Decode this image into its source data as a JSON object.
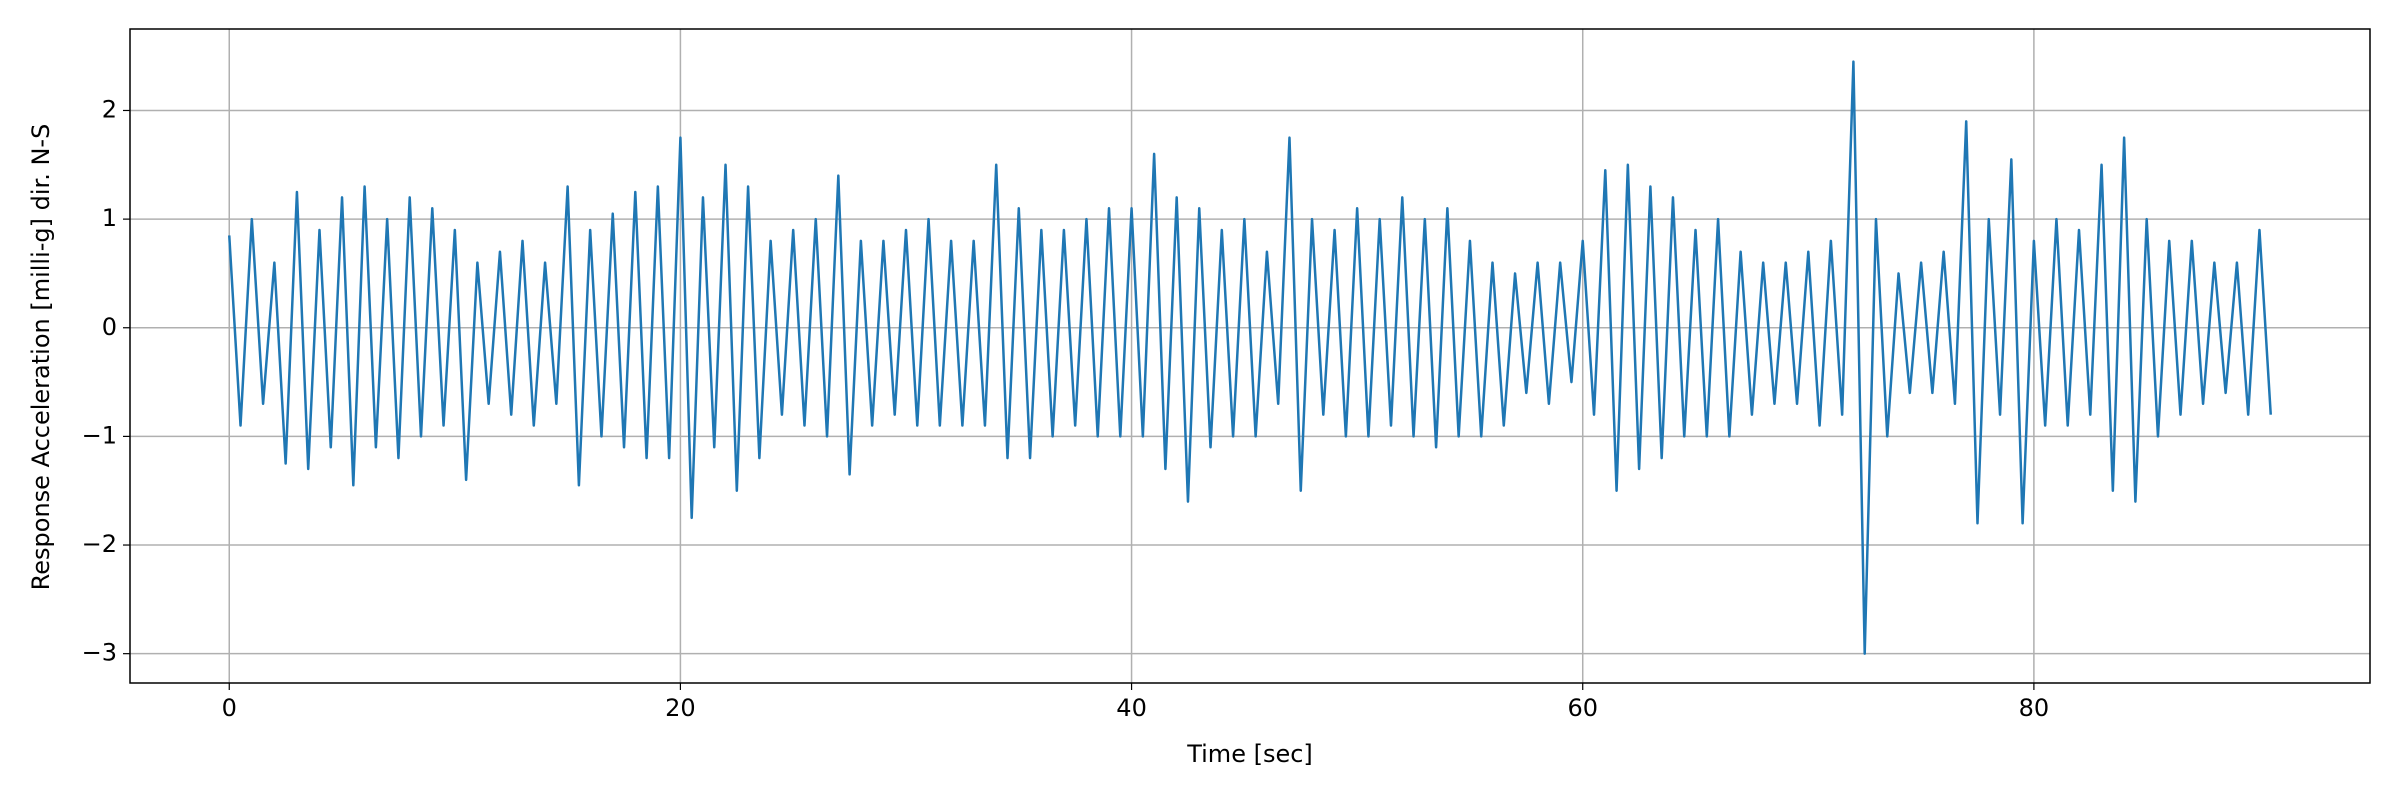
{
  "chart_data": {
    "type": "line",
    "xlabel": "Time [sec]",
    "ylabel": "Response Acceleration [milli-g] dir. N-S",
    "color": "#1f77b4",
    "grid": true,
    "xlim": [
      -4.4,
      94.9
    ],
    "ylim": [
      -3.27,
      2.75
    ],
    "xticks": [
      0,
      20,
      40,
      60,
      80
    ],
    "yticks": [
      {
        "value": -3,
        "label": "−3"
      },
      {
        "value": -2,
        "label": "−2"
      },
      {
        "value": -1,
        "label": "−1"
      },
      0,
      1,
      2
    ],
    "x": [
      0,
      0.5,
      1,
      1.5,
      2,
      2.5,
      3,
      3.5,
      4,
      4.5,
      5,
      5.5,
      6,
      6.5,
      7,
      7.5,
      8,
      8.5,
      9,
      9.5,
      10,
      10.5,
      11,
      11.5,
      12,
      12.5,
      13,
      13.5,
      14,
      14.5,
      15,
      15.5,
      16,
      16.5,
      17,
      17.5,
      18,
      18.5,
      19,
      19.5,
      20,
      20.5,
      21,
      21.5,
      22,
      22.5,
      23,
      23.5,
      24,
      24.5,
      25,
      25.5,
      26,
      26.5,
      27,
      27.5,
      28,
      28.5,
      29,
      29.5,
      30,
      30.5,
      31,
      31.5,
      32,
      32.5,
      33,
      33.5,
      34,
      34.5,
      35,
      35.5,
      36,
      36.5,
      37,
      37.5,
      38,
      38.5,
      39,
      39.5,
      40,
      40.5,
      41,
      41.5,
      42,
      42.5,
      43,
      43.5,
      44,
      44.5,
      45,
      45.5,
      46,
      46.5,
      47,
      47.5,
      48,
      48.5,
      49,
      49.5,
      50,
      50.5,
      51,
      51.5,
      52,
      52.5,
      53,
      53.5,
      54,
      54.5,
      55,
      55.5,
      56,
      56.5,
      57,
      57.5,
      58,
      58.5,
      59,
      59.5,
      60,
      60.5,
      61,
      61.5,
      62,
      62.5,
      63,
      63.5,
      64,
      64.5,
      65,
      65.5,
      66,
      66.5,
      67,
      67.5,
      68,
      68.5,
      69,
      69.5,
      70,
      70.5,
      71,
      71.5,
      72,
      72.5,
      73,
      73.5,
      74,
      74.5,
      75,
      75.5,
      76,
      76.5,
      77,
      77.5,
      78,
      78.5,
      79,
      79.5,
      80,
      80.5,
      81,
      81.5,
      82,
      82.5,
      83,
      83.5,
      84,
      84.5,
      85,
      85.5,
      86,
      86.5,
      87,
      87.5,
      88,
      88.5,
      89,
      89.5,
      90,
      90.5
    ],
    "values": [
      0.85,
      -0.9,
      1.0,
      -0.7,
      0.6,
      -1.25,
      1.25,
      -1.3,
      0.9,
      -1.1,
      1.2,
      -1.45,
      1.3,
      -1.1,
      1.0,
      -1.2,
      1.2,
      -1.0,
      1.1,
      -0.9,
      0.9,
      -1.4,
      0.6,
      -0.7,
      0.7,
      -0.8,
      0.8,
      -0.9,
      0.6,
      -0.7,
      1.3,
      -1.45,
      0.9,
      -1.0,
      1.05,
      -1.1,
      1.25,
      -1.2,
      1.3,
      -1.2,
      1.75,
      -1.75,
      1.2,
      -1.1,
      1.5,
      -1.5,
      1.3,
      -1.2,
      0.8,
      -0.8,
      0.9,
      -0.9,
      1.0,
      -1.0,
      1.4,
      -1.35,
      0.8,
      -0.9,
      0.8,
      -0.8,
      0.9,
      -0.9,
      1.0,
      -0.9,
      0.8,
      -0.9,
      0.8,
      -0.9,
      1.5,
      -1.2,
      1.1,
      -1.2,
      0.9,
      -1.0,
      0.9,
      -0.9,
      1.0,
      -1.0,
      1.1,
      -1.0,
      1.1,
      -1.0,
      1.6,
      -1.3,
      1.2,
      -1.6,
      1.1,
      -1.1,
      0.9,
      -1.0,
      1.0,
      -1.0,
      0.7,
      -0.7,
      1.75,
      -1.5,
      1.0,
      -0.8,
      0.9,
      -1.0,
      1.1,
      -1.0,
      1.0,
      -0.9,
      1.2,
      -1.0,
      1.0,
      -1.1,
      1.1,
      -1.0,
      0.8,
      -1.0,
      0.6,
      -0.9,
      0.5,
      -0.6,
      0.6,
      -0.7,
      0.6,
      -0.5,
      0.8,
      -0.8,
      1.45,
      -1.5,
      1.5,
      -1.3,
      1.3,
      -1.2,
      1.2,
      -1.0,
      0.9,
      -1.0,
      1.0,
      -1.0,
      0.7,
      -0.8,
      0.6,
      -0.7,
      0.6,
      -0.7,
      0.7,
      -0.9,
      0.8,
      -0.8,
      2.45,
      -3.0,
      1.0,
      -1.0,
      0.5,
      -0.6,
      0.6,
      -0.6,
      0.7,
      -0.7,
      1.9,
      -1.8,
      1.0,
      -0.8,
      1.55,
      -1.8,
      0.8,
      -0.9,
      1.0,
      -0.9,
      0.9,
      -0.8,
      1.5,
      -1.5,
      1.75,
      -1.6,
      1.0,
      -1.0,
      0.8,
      -0.8,
      0.8,
      -0.7,
      0.6,
      -0.6,
      0.6,
      -0.8,
      0.9,
      -0.8
    ]
  }
}
